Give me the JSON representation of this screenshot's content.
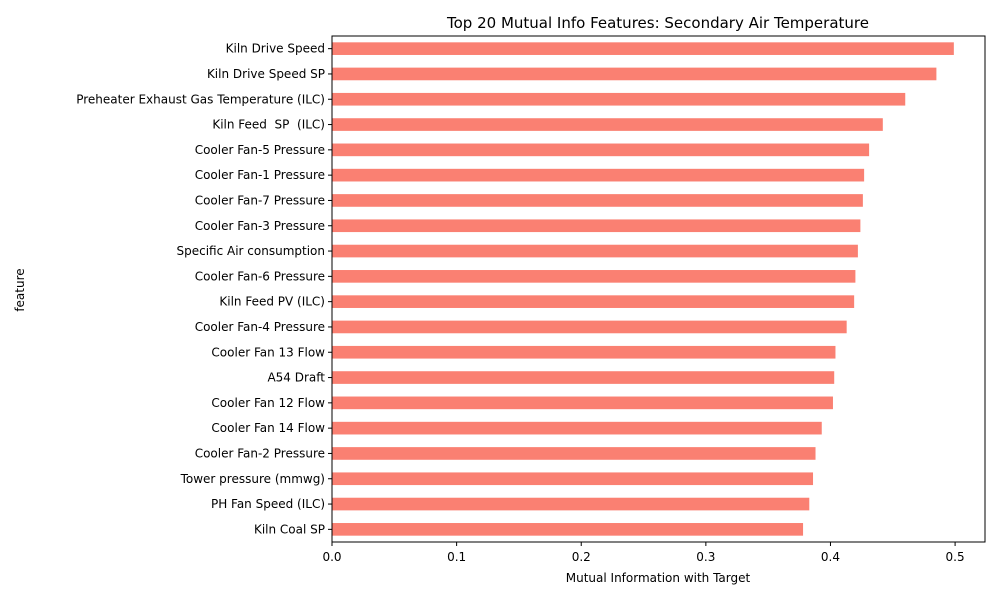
{
  "chart_data": {
    "type": "bar",
    "orientation": "horizontal",
    "title": "Top 20 Mutual Info Features: Secondary Air Temperature",
    "xlabel": "Mutual Information with Target",
    "ylabel": "feature",
    "xlim": [
      0,
      0.524
    ],
    "xticks": [
      0.0,
      0.1,
      0.2,
      0.3,
      0.4,
      0.5
    ],
    "xtick_labels": [
      "0.0",
      "0.1",
      "0.2",
      "0.3",
      "0.4",
      "0.5"
    ],
    "bar_color": "#fa8072",
    "grid": false,
    "categories": [
      "Kiln Drive Speed",
      "Kiln Drive Speed SP",
      "Preheater Exhaust Gas Temperature (ILC)",
      "Kiln Feed  SP  (ILC)",
      "Cooler Fan-5 Pressure",
      "Cooler Fan-1 Pressure",
      "Cooler Fan-7 Pressure",
      "Cooler Fan-3 Pressure",
      "Specific Air consumption",
      "Cooler Fan-6 Pressure",
      "Kiln Feed PV (ILC)",
      "Cooler Fan-4 Pressure",
      "Cooler Fan 13 Flow",
      "A54 Draft",
      "Cooler Fan 12 Flow",
      "Cooler Fan 14 Flow",
      "Cooler Fan-2 Pressure",
      "Tower pressure (mmwg)",
      "PH Fan Speed (ILC)",
      "Kiln Coal SP"
    ],
    "values": [
      0.499,
      0.485,
      0.46,
      0.442,
      0.431,
      0.427,
      0.426,
      0.424,
      0.422,
      0.42,
      0.419,
      0.413,
      0.404,
      0.403,
      0.402,
      0.393,
      0.388,
      0.386,
      0.383,
      0.378
    ]
  }
}
